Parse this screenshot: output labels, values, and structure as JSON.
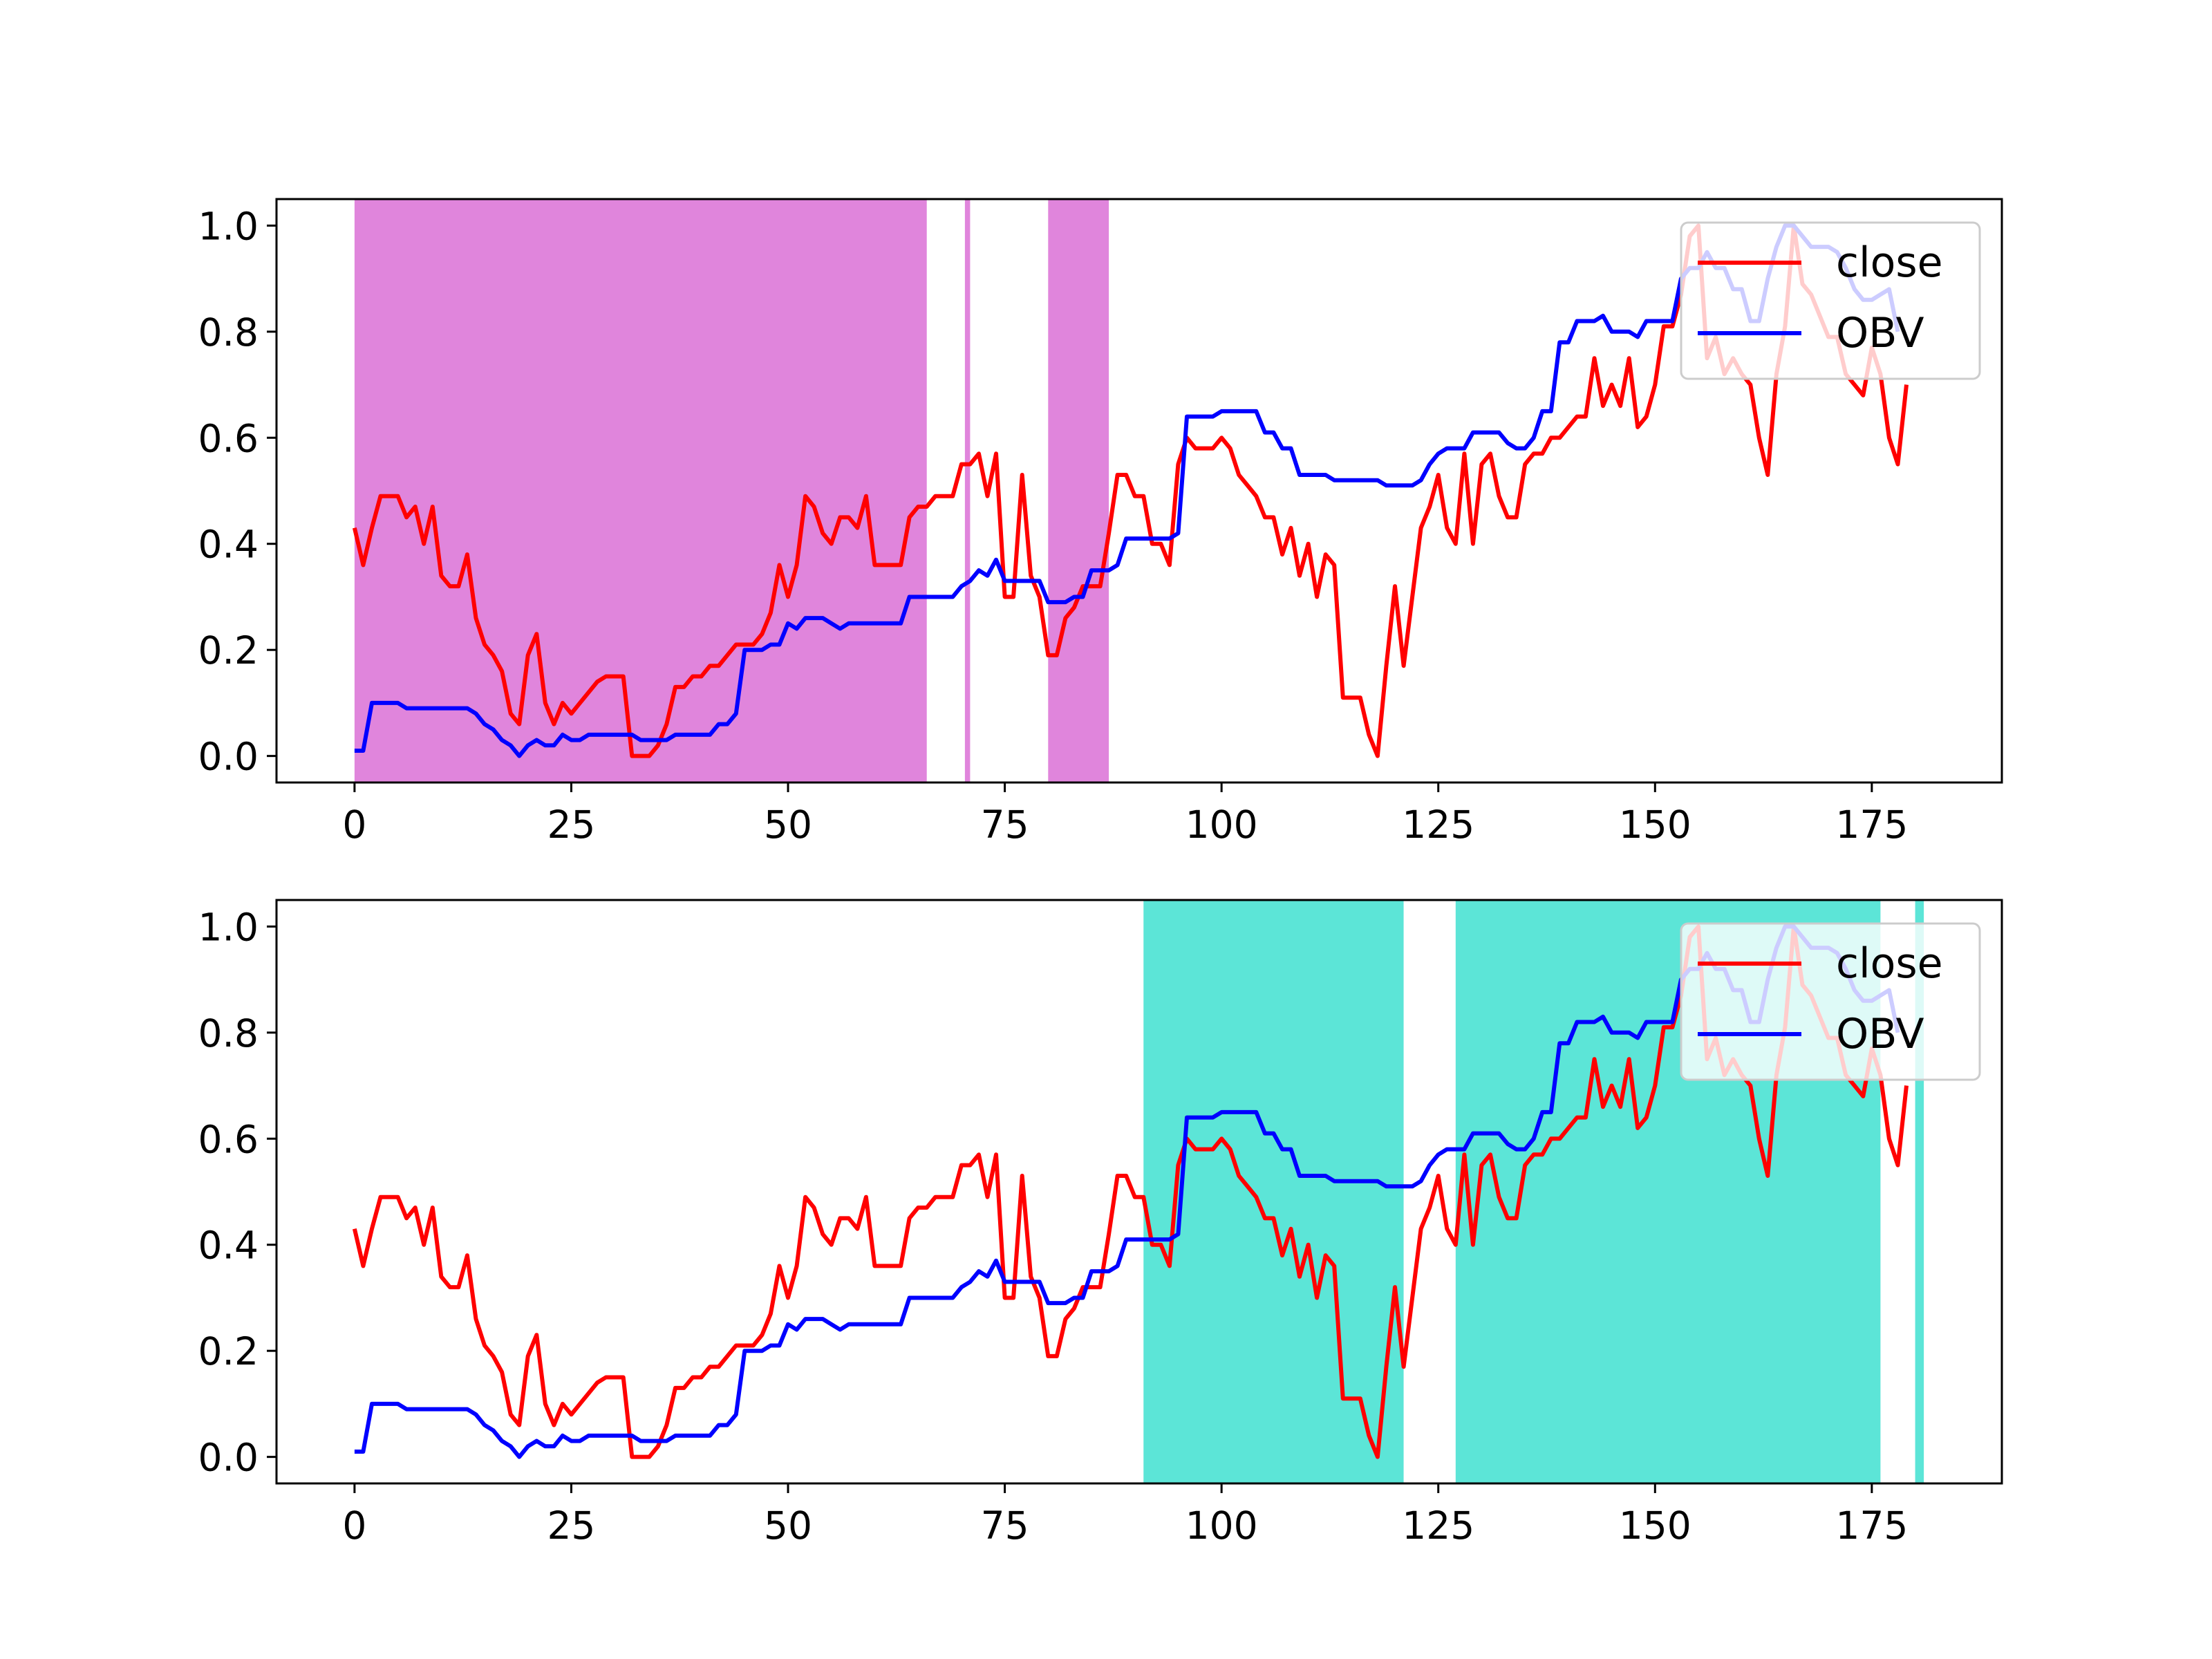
{
  "chart_data": [
    {
      "type": "line",
      "panel": "top",
      "xlim": [
        -9,
        190
      ],
      "ylim": [
        -0.05,
        1.05
      ],
      "xticks": [
        0,
        25,
        50,
        75,
        100,
        125,
        150,
        175
      ],
      "yticks": [
        0.0,
        0.2,
        0.4,
        0.6,
        0.8,
        1.0
      ],
      "ytick_labels": [
        "0.0",
        "0.2",
        "0.4",
        "0.6",
        "0.8",
        "1.0"
      ],
      "grid": false,
      "legend": "top-right",
      "shaded_spans": {
        "color": "#da70d6",
        "ranges": [
          [
            0,
            66
          ],
          [
            70.4,
            71
          ],
          [
            80,
            87
          ]
        ]
      },
      "series": [
        {
          "name": "close",
          "color": "#ff0000",
          "ref": "close"
        },
        {
          "name": "OBV",
          "color": "#0000ff",
          "ref": "obv"
        }
      ]
    },
    {
      "type": "line",
      "panel": "bottom",
      "xlim": [
        -9,
        190
      ],
      "ylim": [
        -0.05,
        1.05
      ],
      "xticks": [
        0,
        25,
        50,
        75,
        100,
        125,
        150,
        175
      ],
      "yticks": [
        0.0,
        0.2,
        0.4,
        0.6,
        0.8,
        1.0
      ],
      "ytick_labels": [
        "0.0",
        "0.2",
        "0.4",
        "0.6",
        "0.8",
        "1.0"
      ],
      "grid": false,
      "legend": "top-right",
      "shaded_spans": {
        "color": "#40e0d0",
        "ranges": [
          [
            91,
            121
          ],
          [
            127,
            176
          ],
          [
            180,
            181
          ]
        ]
      },
      "series": [
        {
          "name": "close",
          "color": "#ff0000",
          "ref": "close"
        },
        {
          "name": "OBV",
          "color": "#0000ff",
          "ref": "obv"
        }
      ]
    }
  ],
  "series_values": {
    "close": [
      0.43,
      0.36,
      0.43,
      0.49,
      0.49,
      0.49,
      0.45,
      0.47,
      0.4,
      0.47,
      0.34,
      0.32,
      0.32,
      0.38,
      0.26,
      0.21,
      0.19,
      0.16,
      0.08,
      0.06,
      0.19,
      0.23,
      0.1,
      0.06,
      0.1,
      0.08,
      0.1,
      0.12,
      0.14,
      0.15,
      0.15,
      0.15,
      0.0,
      0.0,
      0.0,
      0.02,
      0.06,
      0.13,
      0.13,
      0.15,
      0.15,
      0.17,
      0.17,
      0.19,
      0.21,
      0.21,
      0.21,
      0.23,
      0.27,
      0.36,
      0.3,
      0.36,
      0.49,
      0.47,
      0.42,
      0.4,
      0.45,
      0.45,
      0.43,
      0.49,
      0.36,
      0.36,
      0.36,
      0.36,
      0.45,
      0.47,
      0.47,
      0.49,
      0.49,
      0.49,
      0.55,
      0.55,
      0.57,
      0.49,
      0.57,
      0.3,
      0.3,
      0.53,
      0.34,
      0.3,
      0.19,
      0.19,
      0.26,
      0.28,
      0.32,
      0.32,
      0.32,
      0.42,
      0.53,
      0.53,
      0.49,
      0.49,
      0.4,
      0.4,
      0.36,
      0.55,
      0.6,
      0.58,
      0.58,
      0.58,
      0.6,
      0.58,
      0.53,
      0.51,
      0.49,
      0.45,
      0.45,
      0.38,
      0.43,
      0.34,
      0.4,
      0.3,
      0.38,
      0.36,
      0.11,
      0.11,
      0.11,
      0.04,
      0.0,
      0.17,
      0.32,
      0.17,
      0.3,
      0.43,
      0.47,
      0.53,
      0.43,
      0.4,
      0.57,
      0.4,
      0.55,
      0.57,
      0.49,
      0.45,
      0.45,
      0.55,
      0.57,
      0.57,
      0.6,
      0.6,
      0.62,
      0.64,
      0.64,
      0.75,
      0.66,
      0.7,
      0.66,
      0.75,
      0.62,
      0.64,
      0.7,
      0.81,
      0.81,
      0.87,
      0.98,
      1.0,
      0.75,
      0.79,
      0.72,
      0.75,
      0.72,
      0.7,
      0.6,
      0.53,
      0.72,
      0.81,
      1.0,
      0.89,
      0.87,
      0.83,
      0.79,
      0.79,
      0.72,
      0.7,
      0.68,
      0.77,
      0.72,
      0.6,
      0.55,
      0.7
    ],
    "obv": [
      0.01,
      0.01,
      0.1,
      0.1,
      0.1,
      0.1,
      0.09,
      0.09,
      0.09,
      0.09,
      0.09,
      0.09,
      0.09,
      0.09,
      0.08,
      0.06,
      0.05,
      0.03,
      0.02,
      0.0,
      0.02,
      0.03,
      0.02,
      0.02,
      0.04,
      0.03,
      0.03,
      0.04,
      0.04,
      0.04,
      0.04,
      0.04,
      0.04,
      0.03,
      0.03,
      0.03,
      0.03,
      0.04,
      0.04,
      0.04,
      0.04,
      0.04,
      0.06,
      0.06,
      0.08,
      0.2,
      0.2,
      0.2,
      0.21,
      0.21,
      0.25,
      0.24,
      0.26,
      0.26,
      0.26,
      0.25,
      0.24,
      0.25,
      0.25,
      0.25,
      0.25,
      0.25,
      0.25,
      0.25,
      0.3,
      0.3,
      0.3,
      0.3,
      0.3,
      0.3,
      0.32,
      0.33,
      0.35,
      0.34,
      0.37,
      0.33,
      0.33,
      0.33,
      0.33,
      0.33,
      0.29,
      0.29,
      0.29,
      0.3,
      0.3,
      0.35,
      0.35,
      0.35,
      0.36,
      0.41,
      0.41,
      0.41,
      0.41,
      0.41,
      0.41,
      0.42,
      0.64,
      0.64,
      0.64,
      0.64,
      0.65,
      0.65,
      0.65,
      0.65,
      0.65,
      0.61,
      0.61,
      0.58,
      0.58,
      0.53,
      0.53,
      0.53,
      0.53,
      0.52,
      0.52,
      0.52,
      0.52,
      0.52,
      0.52,
      0.51,
      0.51,
      0.51,
      0.51,
      0.52,
      0.55,
      0.57,
      0.58,
      0.58,
      0.58,
      0.61,
      0.61,
      0.61,
      0.61,
      0.59,
      0.58,
      0.58,
      0.6,
      0.65,
      0.65,
      0.78,
      0.78,
      0.82,
      0.82,
      0.82,
      0.83,
      0.8,
      0.8,
      0.8,
      0.79,
      0.82,
      0.82,
      0.82,
      0.82,
      0.9,
      0.92,
      0.92,
      0.95,
      0.92,
      0.92,
      0.88,
      0.88,
      0.82,
      0.82,
      0.9,
      0.96,
      1.0,
      1.0,
      0.98,
      0.96,
      0.96,
      0.96,
      0.95,
      0.92,
      0.88,
      0.86,
      0.86,
      0.87,
      0.88,
      0.8
    ]
  }
}
